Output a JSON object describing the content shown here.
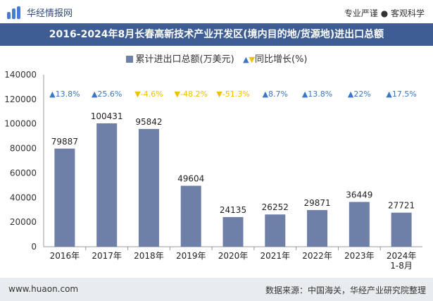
{
  "header": {
    "brand": "华经情报网",
    "tagline": "专业严谨 ● 客观科学"
  },
  "title": "2016-2024年8月长春高新技术产业开发区(境内目的地/货源地)进出口总额",
  "legend": {
    "bar_label": "累计进出口总额(万美元)",
    "line_label": "同比增长(%)"
  },
  "colors": {
    "bar": "#6e7fa8",
    "up": "#3a76c2",
    "down": "#f0c000",
    "title_bg": "#3d5d93"
  },
  "chart_data": {
    "type": "bar",
    "categories": [
      "2016年",
      "2017年",
      "2018年",
      "2019年",
      "2020年",
      "2021年",
      "2022年",
      "2023年",
      "2024年\n1-8月"
    ],
    "series": [
      {
        "name": "累计进出口总额(万美元)",
        "values": [
          79887,
          100431,
          95842,
          49604,
          24135,
          26252,
          29871,
          36449,
          27721
        ]
      }
    ],
    "growth": [
      "13.8%",
      "25.6%",
      "-4.6%",
      "-48.2%",
      "-51.3%",
      "8.7%",
      "13.8%",
      "22%",
      "17.5%"
    ],
    "growth_direction": [
      "up",
      "up",
      "down",
      "down",
      "down",
      "up",
      "up",
      "up",
      "up"
    ],
    "ylim": [
      0,
      140000
    ],
    "yticks": [
      0,
      20000,
      40000,
      60000,
      80000,
      100000,
      120000,
      140000
    ]
  },
  "footer": {
    "website": "www.huaon.com",
    "source": "数据来源：中国海关，华经产业研究院整理"
  }
}
